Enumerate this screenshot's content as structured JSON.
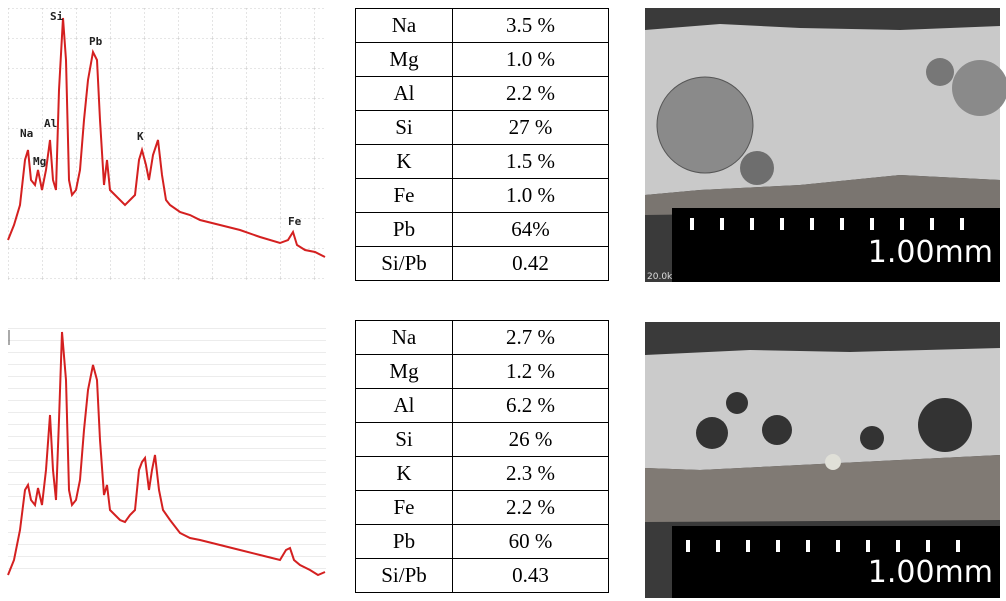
{
  "panels": [
    {
      "peak_labels": [
        "Na",
        "Mg",
        "Al",
        "Si",
        "Pb",
        "K",
        "Fe"
      ],
      "table": {
        "rows": [
          [
            "Na",
            "3.5 %"
          ],
          [
            "Mg",
            "1.0 %"
          ],
          [
            "Al",
            "2.2 %"
          ],
          [
            "Si",
            "27 %"
          ],
          [
            "K",
            "1.5 %"
          ],
          [
            "Fe",
            "1.0 %"
          ],
          [
            "Pb",
            "64%"
          ],
          [
            "Si/Pb",
            "0.42"
          ]
        ]
      },
      "image": {
        "scale_label": "1.00mm",
        "corner_label": "20.0k"
      }
    },
    {
      "table": {
        "rows": [
          [
            "Na",
            "2.7 %"
          ],
          [
            "Mg",
            "1.2 %"
          ],
          [
            "Al",
            "6.2 %"
          ],
          [
            "Si",
            "26 %"
          ],
          [
            "K",
            "2.3 %"
          ],
          [
            "Fe",
            "2.2 %"
          ],
          [
            "Pb",
            "60 %"
          ],
          [
            "Si/Pb",
            "0.43"
          ]
        ]
      },
      "image": {
        "scale_label": "1.00mm"
      }
    }
  ]
}
